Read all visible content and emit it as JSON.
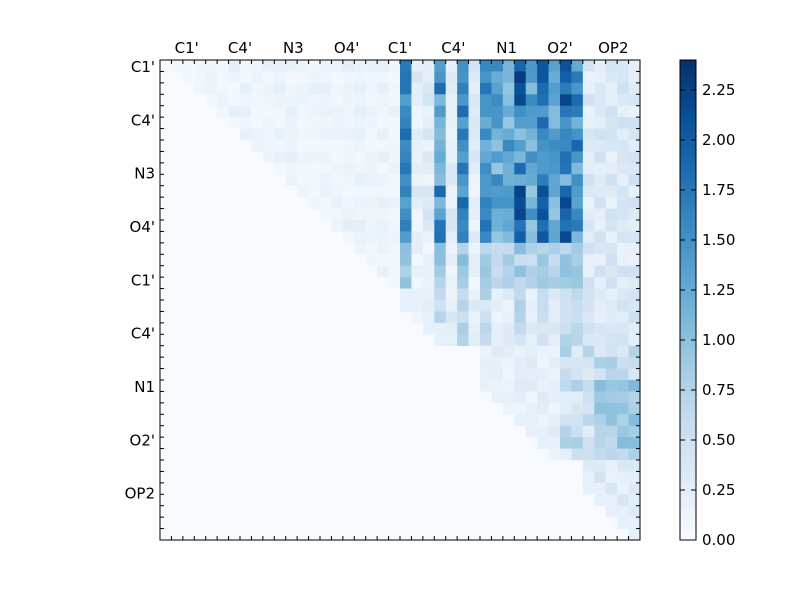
{
  "chart_data": {
    "type": "heatmap",
    "title": "",
    "xlabel": "",
    "ylabel": "",
    "x_tick_labels": [
      "C1'",
      "C4'",
      "N3",
      "O4'",
      "C1'",
      "C4'",
      "N1",
      "O2'",
      "OP2"
    ],
    "y_tick_labels": [
      "C1'",
      "C4'",
      "N3",
      "O4'",
      "C1'",
      "C4'",
      "N1",
      "O2'",
      "OP2"
    ],
    "grid_size": 42,
    "colormap": "Blues",
    "colors": [
      "#f7fbff",
      "#deebf7",
      "#c6dbef",
      "#9ecae1",
      "#6baed6",
      "#4292c6",
      "#2171b5",
      "#08519c",
      "#08306b"
    ],
    "colorbar": {
      "min": 0.0,
      "max": 2.4,
      "ticks": [
        0.0,
        0.25,
        0.5,
        0.75,
        1.0,
        1.25,
        1.5,
        1.75,
        2.0,
        2.25
      ],
      "tick_labels": [
        "0.00",
        "0.25",
        "0.50",
        "0.75",
        "1.00",
        "1.25",
        "1.50",
        "1.75",
        "2.00",
        "2.25"
      ]
    },
    "upper_triangle_only": true,
    "approximate_values": {
      "strong_columns": [
        21,
        24,
        26,
        28,
        31,
        33,
        35,
        36
      ],
      "peak_value": 2.35,
      "background_value": 0.0
    }
  }
}
